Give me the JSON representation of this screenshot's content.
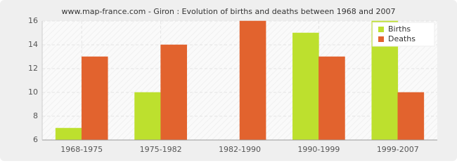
{
  "chart_data": {
    "type": "bar",
    "title": "www.map-france.com - Giron : Evolution of births and deaths between 1968 and 2007",
    "categories": [
      "1968-1975",
      "1975-1982",
      "1982-1990",
      "1990-1999",
      "1999-2007"
    ],
    "series": [
      {
        "name": "Births",
        "color": "#bde02e",
        "values": [
          7,
          10,
          6,
          15,
          16
        ]
      },
      {
        "name": "Deaths",
        "color": "#e2632e",
        "values": [
          13,
          14,
          16,
          13,
          10
        ]
      }
    ],
    "ylim": [
      6,
      16
    ],
    "yticks": [
      6,
      8,
      10,
      12,
      14,
      16
    ],
    "grid": true,
    "legend": "top-right"
  }
}
